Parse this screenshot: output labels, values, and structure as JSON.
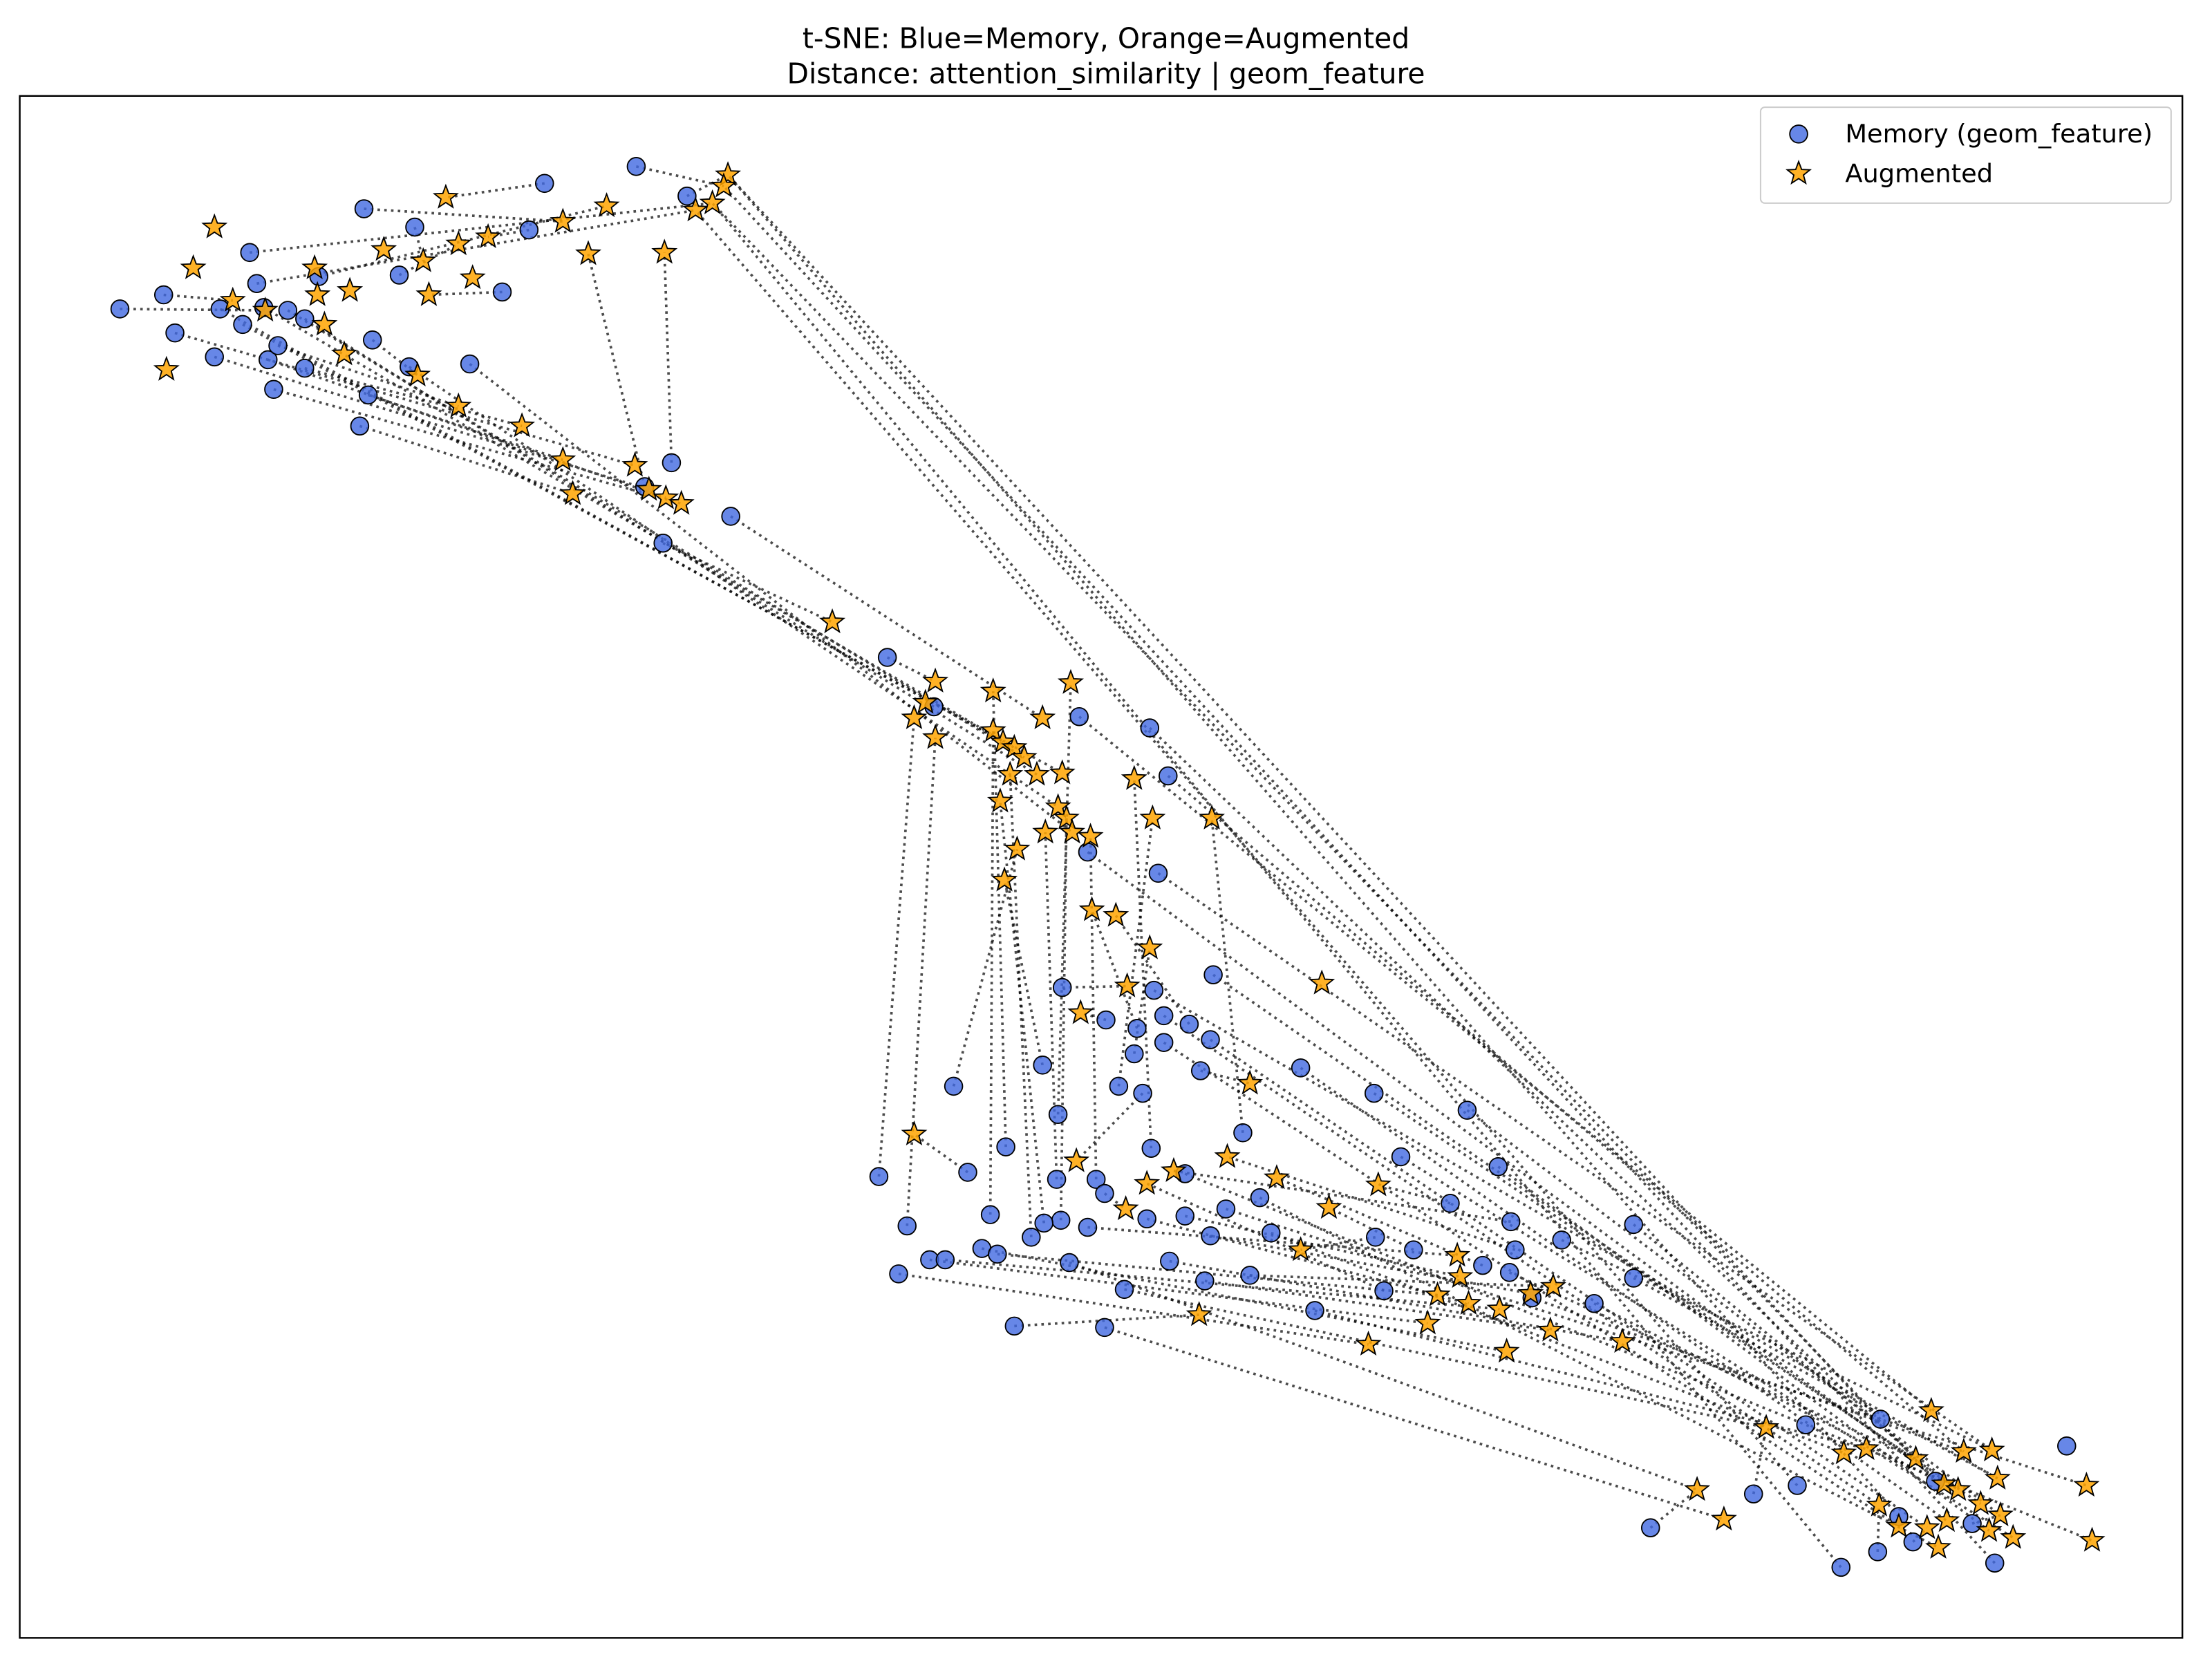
{
  "chart_data": {
    "type": "scatter",
    "title": [
      "t-SNE: Blue=Memory, Orange=Augmented",
      "Distance: attention_similarity | geom_feature"
    ],
    "xlim": [
      14,
      1547
    ],
    "ylim": [
      1161,
      68
    ],
    "legend": "upper right",
    "series": [
      {
        "name": "Memory (geom_feature)",
        "marker": "circle",
        "color": "#4169e1",
        "x": [
          85,
          116,
          124,
          152,
          156,
          172,
          177,
          182,
          187,
          190,
          194,
          197,
          204,
          216,
          216,
          226,
          258,
          261,
          255,
          264,
          283,
          290,
          294,
          333,
          356,
          375,
          386,
          451,
          487,
          476,
          518,
          470,
          457,
          629,
          662,
          765,
          815,
          828,
          821,
          771,
          860,
          753,
          818,
          784,
          806,
          825,
          843,
          825,
          804,
          858,
          851,
          810,
          793,
          739,
          676,
          922,
          881,
          974,
          1040,
          1062,
          993,
          893,
          869,
          840,
          816,
          777,
          749,
          783,
          752,
          740,
          731,
          702,
          686,
          713,
          750,
          623,
          643,
          637,
          659,
          670,
          696,
          707,
          771,
          813,
          840,
          858,
          886,
          854,
          829,
          797,
          758,
          719,
          783,
          901,
          932,
          975,
          1002,
          1028,
          981,
          1051,
          1071,
          1074,
          1070,
          1086,
          1107,
          1130,
          1158,
          1158,
          1333,
          1280,
          1243,
          1274,
          1170,
          1305,
          1331,
          1356,
          1346,
          1372,
          1398,
          1414,
          1465
        ],
        "y": [
          219,
          209,
          236,
          253,
          219,
          230,
          179,
          201,
          218,
          255,
          276,
          245,
          220,
          226,
          261,
          196,
          148,
          280,
          302,
          241,
          195,
          260,
          161,
          258,
          207,
          163,
          130,
          118,
          139,
          328,
          366,
          385,
          345,
          466,
          501,
          508,
          516,
          550,
          619,
          604,
          691,
          700,
          702,
          723,
          729,
          720,
          726,
          739,
          747,
          737,
          759,
          775,
          770,
          755,
          770,
          757,
          803,
          775,
          787,
          827,
          820,
          849,
          857,
          832,
          814,
          836,
          836,
          846,
          865,
          867,
          877,
          861,
          831,
          813,
          790,
          834,
          869,
          903,
          893,
          893,
          885,
          889,
          870,
          864,
          862,
          876,
          904,
          908,
          894,
          914,
          895,
          940,
          941,
          874,
          929,
          877,
          886,
          853,
          915,
          897,
          866,
          886,
          902,
          920,
          879,
          924,
          868,
          906,
          1006,
          1010,
          1059,
          1053,
          1083,
          1111,
          1100,
          1093,
          1075,
          1050,
          1080,
          1108,
          1025
        ]
      },
      {
        "name": "Augmented",
        "marker": "star",
        "color": "#ffa500",
        "x": [
          152,
          137,
          118,
          165,
          188,
          230,
          223,
          225,
          248,
          244,
          272,
          300,
          304,
          325,
          346,
          335,
          316,
          399,
          430,
          417,
          471,
          493,
          505,
          516,
          513,
          296,
          325,
          370,
          399,
          406,
          450,
          460,
          472,
          483,
          590,
          663,
          656,
          648,
          663,
          704,
          759,
          739,
          704,
          711,
          719,
          726,
          735,
          753,
          716,
          709,
          750,
          756,
          741,
          760,
          773,
          721,
          712,
          804,
          817,
          859,
          774,
          791,
          815,
          799,
          766,
          937,
          886,
          648,
          763,
          832,
          870,
          905,
          813,
          798,
          942,
          977,
          922,
          1033,
          1035,
          1019,
          1041,
          1063,
          1085,
          1101,
          1012,
          1099,
          970,
          1068,
          1150,
          850,
          1369,
          1252,
          1307,
          1323,
          1358,
          1392,
          1412,
          1378,
          1388,
          1416,
          1203,
          1222,
          1332,
          1346,
          1366,
          1380,
          1404,
          1418,
          1410,
          1427,
          1374,
          1479,
          1483
        ],
        "y": [
          161,
          190,
          262,
          213,
          220,
          230,
          190,
          209,
          206,
          251,
          177,
          185,
          209,
          173,
          168,
          197,
          140,
          157,
          146,
          180,
          179,
          149,
          144,
          124,
          132,
          266,
          288,
          302,
          326,
          350,
          330,
          347,
          353,
          357,
          441,
          483,
          498,
          509,
          523,
          490,
          484,
          509,
          518,
          526,
          530,
          537,
          549,
          548,
          549,
          568,
          572,
          580,
          590,
          590,
          593,
          602,
          624,
          552,
          580,
          580,
          645,
          649,
          672,
          699,
          718,
          697,
          768,
          804,
          823,
          830,
          820,
          835,
          839,
          857,
          856,
          840,
          886,
          890,
          905,
          918,
          924,
          928,
          917,
          912,
          938,
          943,
          953,
          958,
          951,
          932,
          1000,
          1012,
          1030,
          1027,
          1034,
          1029,
          1028,
          1052,
          1056,
          1048,
          1056,
          1077,
          1067,
          1082,
          1083,
          1078,
          1066,
          1074,
          1085,
          1090,
          1097,
          1053,
          1092
        ]
      }
    ],
    "links": [
      [
        0,
        4
      ],
      [
        1,
        3
      ],
      [
        2,
        30
      ],
      [
        3,
        31
      ],
      [
        9,
        32
      ],
      [
        10,
        33
      ],
      [
        18,
        29
      ],
      [
        17,
        28
      ],
      [
        14,
        27
      ],
      [
        11,
        26
      ],
      [
        19,
        25
      ],
      [
        5,
        47
      ],
      [
        13,
        46
      ],
      [
        12,
        45
      ],
      [
        8,
        44
      ],
      [
        4,
        43
      ],
      [
        7,
        21
      ],
      [
        6,
        22
      ],
      [
        15,
        18
      ],
      [
        16,
        17
      ],
      [
        20,
        13
      ],
      [
        22,
        11
      ],
      [
        24,
        12
      ],
      [
        25,
        14
      ],
      [
        26,
        16
      ],
      [
        27,
        24
      ],
      [
        28,
        23
      ],
      [
        29,
        20
      ],
      [
        32,
        19
      ],
      [
        30,
        41
      ],
      [
        31,
        34
      ],
      [
        21,
        50
      ],
      [
        23,
        53
      ],
      [
        111,
        21
      ],
      [
        113,
        22
      ],
      [
        116,
        23
      ],
      [
        119,
        24
      ],
      [
        108,
        22
      ],
      [
        117,
        23
      ],
      [
        33,
        35
      ],
      [
        34,
        36
      ],
      [
        35,
        90
      ],
      [
        36,
        94
      ],
      [
        37,
        95
      ],
      [
        38,
        96
      ],
      [
        39,
        97
      ],
      [
        40,
        98
      ],
      [
        42,
        99
      ],
      [
        45,
        102
      ],
      [
        47,
        103
      ],
      [
        49,
        104
      ],
      [
        55,
        105
      ],
      [
        57,
        106
      ],
      [
        58,
        107
      ],
      [
        59,
        108
      ],
      [
        60,
        109
      ],
      [
        61,
        110
      ],
      [
        62,
        111
      ],
      [
        63,
        112
      ],
      [
        53,
        56
      ],
      [
        54,
        55
      ],
      [
        41,
        63
      ],
      [
        43,
        64
      ],
      [
        44,
        60
      ],
      [
        46,
        61
      ],
      [
        48,
        62
      ],
      [
        50,
        66
      ],
      [
        51,
        68
      ],
      [
        52,
        58
      ],
      [
        56,
        59
      ],
      [
        64,
        57
      ],
      [
        65,
        54
      ],
      [
        66,
        52
      ],
      [
        67,
        73
      ],
      [
        68,
        51
      ],
      [
        69,
        49
      ],
      [
        70,
        48
      ],
      [
        71,
        42
      ],
      [
        72,
        67
      ],
      [
        73,
        39
      ],
      [
        74,
        40
      ],
      [
        75,
        37
      ],
      [
        76,
        38
      ],
      [
        77,
        86
      ],
      [
        78,
        84
      ],
      [
        79,
        81
      ],
      [
        80,
        87
      ],
      [
        81,
        79
      ],
      [
        82,
        77
      ],
      [
        83,
        80
      ],
      [
        84,
        78
      ],
      [
        85,
        82
      ],
      [
        86,
        83
      ],
      [
        87,
        85
      ],
      [
        88,
        88
      ],
      [
        89,
        91
      ],
      [
        90,
        100
      ],
      [
        91,
        89
      ],
      [
        92,
        101
      ],
      [
        93,
        92
      ],
      [
        94,
        93
      ],
      [
        95,
        76
      ],
      [
        96,
        74
      ],
      [
        97,
        75
      ],
      [
        98,
        72
      ],
      [
        99,
        71
      ],
      [
        100,
        69
      ],
      [
        101,
        70
      ],
      [
        102,
        94
      ],
      [
        103,
        95
      ],
      [
        104,
        96
      ],
      [
        105,
        97
      ],
      [
        106,
        98
      ],
      [
        107,
        99
      ],
      [
        110,
        91
      ],
      [
        112,
        100
      ],
      [
        114,
        102
      ],
      [
        115,
        104
      ],
      [
        118,
        107
      ]
    ]
  }
}
